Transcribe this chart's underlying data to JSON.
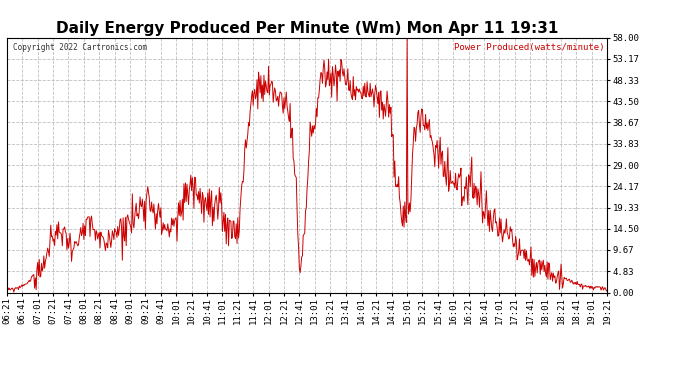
{
  "title": "Daily Energy Produced Per Minute (Wm) Mon Apr 11 19:31",
  "legend_label": "Power Produced(watts/minute)",
  "copyright": "Copyright 2022 Cartronics.com",
  "line_color": "#cc0000",
  "bg_color": "#ffffff",
  "grid_color": "#b0b0b0",
  "yticks": [
    0.0,
    4.83,
    9.67,
    14.5,
    19.33,
    24.17,
    29.0,
    33.83,
    38.67,
    43.5,
    48.33,
    53.17,
    58.0
  ],
  "ymax": 58.0,
  "ymin": 0.0,
  "xtick_labels": [
    "06:21",
    "06:41",
    "07:01",
    "07:21",
    "07:41",
    "08:01",
    "08:21",
    "08:41",
    "09:01",
    "09:21",
    "09:41",
    "10:01",
    "10:21",
    "10:41",
    "11:01",
    "11:21",
    "11:41",
    "12:01",
    "12:21",
    "12:41",
    "13:01",
    "13:21",
    "13:41",
    "14:01",
    "14:21",
    "14:41",
    "15:01",
    "15:21",
    "15:41",
    "16:01",
    "16:21",
    "16:41",
    "17:01",
    "17:21",
    "17:41",
    "18:01",
    "18:21",
    "18:41",
    "19:01",
    "19:21"
  ],
  "title_fontsize": 11,
  "label_fontsize": 7,
  "tick_fontsize": 6.5
}
